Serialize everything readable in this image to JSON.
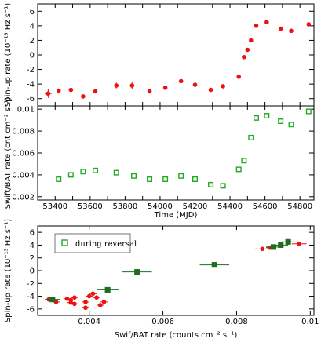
{
  "chart_data": [
    {
      "type": "scatter",
      "ylabel": "Spin-up rate (10⁻¹³ Hz s⁻¹)",
      "xlim": [
        53300,
        54880
      ],
      "ylim": [
        -7,
        7
      ],
      "yticks": [
        -6,
        -4,
        -2,
        0,
        2,
        4,
        6
      ],
      "grid": false,
      "series": [
        {
          "color": "#ee1111",
          "marker": "circle",
          "points": [
            {
              "x": 53360,
              "y": -5.3,
              "xerr": 20,
              "yerr": 0.6
            },
            {
              "x": 53420,
              "y": -4.9,
              "xerr": 0,
              "yerr": 0
            },
            {
              "x": 53490,
              "y": -4.8,
              "xerr": 0,
              "yerr": 0
            },
            {
              "x": 53560,
              "y": -5.7,
              "xerr": 0,
              "yerr": 0.3
            },
            {
              "x": 53630,
              "y": -5.0,
              "xerr": 0,
              "yerr": 0
            },
            {
              "x": 53750,
              "y": -4.2,
              "xerr": 0,
              "yerr": 0.4
            },
            {
              "x": 53840,
              "y": -4.2,
              "xerr": 0,
              "yerr": 0.5
            },
            {
              "x": 53940,
              "y": -5.0,
              "xerr": 0,
              "yerr": 0.3
            },
            {
              "x": 54030,
              "y": -4.5,
              "xerr": 0,
              "yerr": 0
            },
            {
              "x": 54120,
              "y": -3.6,
              "xerr": 0,
              "yerr": 0
            },
            {
              "x": 54200,
              "y": -4.1,
              "xerr": 0,
              "yerr": 0.3
            },
            {
              "x": 54290,
              "y": -4.8,
              "xerr": 0,
              "yerr": 0
            },
            {
              "x": 54360,
              "y": -4.3,
              "xerr": 0,
              "yerr": 0
            },
            {
              "x": 54450,
              "y": -3.0,
              "xerr": 0,
              "yerr": 0
            },
            {
              "x": 54480,
              "y": -0.3,
              "xerr": 0,
              "yerr": 0
            },
            {
              "x": 54500,
              "y": 0.7,
              "xerr": 0,
              "yerr": 0
            },
            {
              "x": 54520,
              "y": 2.0,
              "xerr": 0,
              "yerr": 0
            },
            {
              "x": 54550,
              "y": 4.0,
              "xerr": 0,
              "yerr": 0
            },
            {
              "x": 54610,
              "y": 4.5,
              "xerr": 0,
              "yerr": 0
            },
            {
              "x": 54690,
              "y": 3.6,
              "xerr": 0,
              "yerr": 0
            },
            {
              "x": 54750,
              "y": 3.3,
              "xerr": 0,
              "yerr": 0
            },
            {
              "x": 54850,
              "y": 4.2,
              "xerr": 0,
              "yerr": 0
            }
          ]
        }
      ]
    },
    {
      "type": "scatter",
      "xlabel": "Time (MJD)",
      "ylabel": "Swift/BAT rate (cnt cm⁻² s⁻¹)",
      "xlim": [
        53300,
        54880
      ],
      "ylim": [
        0.0017,
        0.0103
      ],
      "xticks": [
        53400,
        53500,
        53600,
        53700,
        53800,
        53900,
        54000,
        54100,
        54200,
        54300,
        54400,
        54500,
        54600,
        54700,
        54800
      ],
      "yticks": [
        0.002,
        0.004,
        0.006,
        0.008,
        0.01
      ],
      "grid": false,
      "series": [
        {
          "color": "#22aa22",
          "marker": "open-square",
          "points": [
            {
              "x": 53420,
              "y": 0.0036
            },
            {
              "x": 53490,
              "y": 0.004
            },
            {
              "x": 53560,
              "y": 0.0043
            },
            {
              "x": 53630,
              "y": 0.0044
            },
            {
              "x": 53750,
              "y": 0.0042
            },
            {
              "x": 53850,
              "y": 0.0039
            },
            {
              "x": 53940,
              "y": 0.0036
            },
            {
              "x": 54030,
              "y": 0.0036
            },
            {
              "x": 54120,
              "y": 0.0039
            },
            {
              "x": 54200,
              "y": 0.0036
            },
            {
              "x": 54290,
              "y": 0.0031
            },
            {
              "x": 54360,
              "y": 0.003
            },
            {
              "x": 54450,
              "y": 0.0045
            },
            {
              "x": 54480,
              "y": 0.0053
            },
            {
              "x": 54520,
              "y": 0.0074
            },
            {
              "x": 54550,
              "y": 0.0092
            },
            {
              "x": 54610,
              "y": 0.0094
            },
            {
              "x": 54690,
              "y": 0.0089
            },
            {
              "x": 54750,
              "y": 0.0086
            },
            {
              "x": 54850,
              "y": 0.0098
            }
          ]
        }
      ]
    },
    {
      "type": "scatter",
      "xlabel": "Swif/BAT rate (counts cm⁻² s⁻¹)",
      "ylabel": "Spin-up rate (10⁻¹³ Hz s⁻¹)",
      "xlim": [
        0.0026,
        0.0101
      ],
      "ylim": [
        -7,
        7
      ],
      "xticks": [
        0.004,
        0.006,
        0.008,
        0.01
      ],
      "yticks": [
        -6,
        -4,
        -2,
        0,
        2,
        4,
        6
      ],
      "legend": {
        "label": "during reversal",
        "placement": "top-left"
      },
      "grid": false,
      "series": [
        {
          "color": "#ee1111",
          "marker": "circle",
          "points": [
            {
              "x": 0.0029,
              "y": -4.5,
              "xerr": 0.0001,
              "yerr": 0
            },
            {
              "x": 0.0031,
              "y": -4.9,
              "xerr": 0.0001,
              "yerr": 0
            },
            {
              "x": 0.0034,
              "y": -4.4,
              "xerr": 0.0001,
              "yerr": 0
            },
            {
              "x": 0.0035,
              "y": -4.6,
              "xerr": 0.0001,
              "yerr": 0
            },
            {
              "x": 0.0035,
              "y": -5.0,
              "xerr": 0.0001,
              "yerr": 0
            },
            {
              "x": 0.0036,
              "y": -5.2,
              "xerr": 0.0001,
              "yerr": 0
            },
            {
              "x": 0.0036,
              "y": -4.2,
              "xerr": 0.0001,
              "yerr": 0
            },
            {
              "x": 0.0039,
              "y": -4.9,
              "xerr": 0.0001,
              "yerr": 0
            },
            {
              "x": 0.0039,
              "y": -5.8,
              "xerr": 0.0001,
              "yerr": 0
            },
            {
              "x": 0.004,
              "y": -4.0,
              "xerr": 0.0001,
              "yerr": 0
            },
            {
              "x": 0.0041,
              "y": -3.6,
              "xerr": 0.0001,
              "yerr": 0
            },
            {
              "x": 0.0042,
              "y": -4.2,
              "xerr": 0.0001,
              "yerr": 0
            },
            {
              "x": 0.0043,
              "y": -5.4,
              "xerr": 0.0001,
              "yerr": 0
            },
            {
              "x": 0.0044,
              "y": -4.9,
              "xerr": 0.0001,
              "yerr": 0
            },
            {
              "x": 0.0087,
              "y": 3.4,
              "xerr": 0.0002,
              "yerr": 0
            },
            {
              "x": 0.0089,
              "y": 3.6,
              "xerr": 0.0001,
              "yerr": 0
            },
            {
              "x": 0.0094,
              "y": 4.5,
              "xerr": 0.0001,
              "yerr": 0
            },
            {
              "x": 0.0097,
              "y": 4.2,
              "xerr": 0.0002,
              "yerr": 0
            }
          ]
        },
        {
          "name": "during reversal",
          "color": "#1c6e1c",
          "marker": "filled-square",
          "points": [
            {
              "x": 0.003,
              "y": -4.5,
              "xerr": 0.0002,
              "yerr": 0
            },
            {
              "x": 0.0045,
              "y": -3.0,
              "xerr": 0.0003,
              "yerr": 0
            },
            {
              "x": 0.0053,
              "y": -0.2,
              "xerr": 0.0004,
              "yerr": 0
            },
            {
              "x": 0.0074,
              "y": 0.9,
              "xerr": 0.0004,
              "yerr": 0
            },
            {
              "x": 0.009,
              "y": 3.7,
              "xerr": 0.0002,
              "yerr": 0
            },
            {
              "x": 0.0092,
              "y": 4.0,
              "xerr": 0.0002,
              "yerr": 0
            },
            {
              "x": 0.0094,
              "y": 4.5,
              "xerr": 0.0002,
              "yerr": 0
            }
          ]
        }
      ]
    }
  ]
}
